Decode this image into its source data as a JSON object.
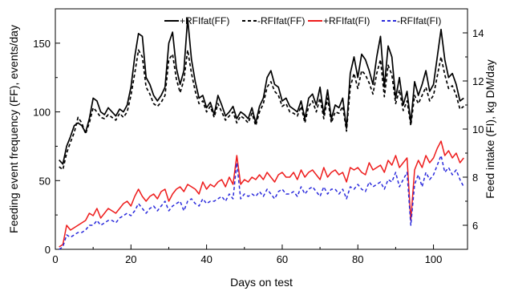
{
  "chart_data": {
    "type": "line",
    "title": "",
    "xlabel": "Days on test",
    "ylabel_left": "Feeding event frequency (FF), events/day",
    "ylabel_right": "Feed intake (FI), kg DM/day",
    "xlim": [
      0,
      109
    ],
    "ylim_left": [
      0,
      175
    ],
    "ylim_right": [
      5,
      15
    ],
    "x_ticks": [
      0,
      20,
      40,
      60,
      80,
      100
    ],
    "y_ticks_left": [
      0,
      50,
      100,
      150
    ],
    "y_ticks_right": [
      6,
      8,
      10,
      12,
      14
    ],
    "grid": false,
    "legend_position": "top",
    "x": [
      1,
      2,
      3,
      4,
      5,
      6,
      7,
      8,
      9,
      10,
      11,
      12,
      13,
      14,
      15,
      16,
      17,
      18,
      19,
      20,
      21,
      22,
      23,
      24,
      25,
      26,
      27,
      28,
      29,
      30,
      31,
      32,
      33,
      34,
      35,
      36,
      37,
      38,
      39,
      40,
      41,
      42,
      43,
      44,
      45,
      46,
      47,
      48,
      49,
      50,
      51,
      52,
      53,
      54,
      55,
      56,
      57,
      58,
      59,
      60,
      61,
      62,
      63,
      64,
      65,
      66,
      67,
      68,
      69,
      70,
      71,
      72,
      73,
      74,
      75,
      76,
      77,
      78,
      79,
      80,
      81,
      82,
      83,
      84,
      85,
      86,
      87,
      88,
      89,
      90,
      91,
      92,
      93,
      94,
      95,
      96,
      97,
      98,
      99,
      100,
      101,
      102,
      103,
      104,
      105,
      106,
      107,
      108
    ],
    "series": [
      {
        "name": "+RFIfat(FF)",
        "axis": "left",
        "color": "#000000",
        "dash": "solid",
        "values": [
          65,
          62,
          75,
          82,
          90,
          92,
          90,
          85,
          95,
          110,
          108,
          100,
          98,
          103,
          100,
          97,
          102,
          100,
          105,
          118,
          140,
          157,
          155,
          125,
          120,
          112,
          108,
          112,
          118,
          150,
          158,
          132,
          120,
          130,
          168,
          138,
          122,
          110,
          112,
          103,
          107,
          98,
          112,
          105,
          97,
          100,
          104,
          95,
          100,
          98,
          95,
          103,
          92,
          104,
          110,
          125,
          130,
          120,
          118,
          108,
          110,
          104,
          102,
          100,
          108,
          95,
          110,
          113,
          105,
          118,
          98,
          116,
          95,
          105,
          103,
          110,
          88,
          128,
          140,
          125,
          142,
          138,
          130,
          120,
          140,
          155,
          118,
          148,
          140,
          110,
          125,
          105,
          115,
          92,
          122,
          112,
          120,
          130,
          115,
          120,
          140,
          160,
          138,
          125,
          128,
          120,
          108,
          110
        ]
      },
      {
        "name": "-RFIfat(FF)",
        "axis": "left",
        "color": "#000000",
        "dash": "4,3",
        "values": [
          60,
          58,
          70,
          78,
          85,
          96,
          92,
          84,
          92,
          103,
          100,
          96,
          95,
          98,
          96,
          94,
          99,
          96,
          100,
          112,
          128,
          145,
          140,
          118,
          113,
          106,
          104,
          107,
          112,
          138,
          142,
          124,
          114,
          123,
          145,
          128,
          115,
          106,
          108,
          100,
          104,
          96,
          106,
          100,
          94,
          97,
          100,
          92,
          97,
          95,
          92,
          99,
          90,
          100,
          106,
          118,
          122,
          115,
          112,
          104,
          106,
          100,
          99,
          97,
          104,
          92,
          104,
          108,
          100,
          110,
          95,
          110,
          92,
          100,
          99,
          104,
          86,
          118,
          128,
          117,
          130,
          127,
          121,
          113,
          128,
          138,
          111,
          134,
          127,
          106,
          116,
          101,
          108,
          90,
          112,
          106,
          112,
          118,
          108,
          112,
          126,
          140,
          127,
          117,
          119,
          112,
          102,
          104
        ]
      },
      {
        "name": "+RFIfat(FI)",
        "axis": "right",
        "color": "#ee1c1c",
        "dash": "solid",
        "values": [
          5.1,
          5.2,
          6.0,
          5.8,
          5.9,
          6.0,
          6.1,
          6.2,
          6.5,
          6.4,
          6.7,
          6.3,
          6.5,
          6.7,
          6.6,
          6.5,
          6.7,
          6.9,
          7.0,
          6.8,
          7.2,
          7.5,
          7.2,
          7.0,
          7.2,
          7.3,
          7.1,
          7.4,
          7.5,
          7.0,
          7.3,
          7.5,
          7.6,
          7.4,
          7.7,
          7.6,
          7.5,
          7.3,
          7.8,
          7.5,
          7.7,
          7.6,
          7.8,
          7.9,
          7.6,
          8.0,
          7.7,
          8.9,
          7.7,
          7.9,
          7.8,
          8.0,
          7.9,
          8.1,
          7.9,
          8.2,
          8.0,
          7.8,
          8.1,
          8.2,
          8.0,
          8.0,
          8.2,
          7.9,
          8.3,
          8.0,
          8.2,
          8.3,
          8.1,
          7.9,
          8.4,
          8.0,
          8.2,
          8.3,
          8.1,
          8.2,
          7.8,
          8.4,
          8.3,
          8.4,
          8.2,
          8.1,
          8.6,
          8.3,
          8.4,
          8.5,
          8.2,
          8.7,
          8.5,
          8.9,
          8.4,
          8.6,
          8.8,
          6.2,
          8.3,
          8.7,
          8.4,
          8.9,
          8.6,
          8.8,
          9.2,
          9.5,
          8.9,
          9.1,
          8.8,
          9.0,
          8.6,
          8.8
        ]
      },
      {
        "name": "-RFIfat(FI)",
        "axis": "right",
        "color": "#2a2adc",
        "dash": "4,3",
        "values": [
          5.0,
          5.1,
          5.6,
          5.5,
          5.6,
          5.7,
          5.7,
          5.8,
          6.0,
          6.0,
          6.2,
          6.0,
          6.1,
          6.2,
          6.2,
          6.1,
          6.3,
          6.4,
          6.5,
          6.4,
          6.6,
          6.9,
          6.7,
          6.5,
          6.7,
          6.8,
          6.6,
          6.8,
          7.0,
          6.6,
          6.8,
          6.9,
          7.0,
          6.6,
          7.0,
          7.1,
          6.9,
          6.8,
          7.1,
          6.9,
          7.0,
          7.0,
          7.1,
          7.2,
          7.0,
          7.3,
          7.1,
          8.6,
          7.1,
          7.3,
          7.2,
          7.3,
          7.2,
          7.4,
          7.2,
          7.5,
          7.3,
          7.1,
          7.4,
          7.5,
          7.3,
          7.3,
          7.4,
          7.2,
          7.6,
          7.3,
          7.5,
          7.6,
          7.4,
          7.2,
          7.6,
          7.3,
          7.5,
          7.5,
          7.3,
          7.5,
          7.1,
          7.6,
          7.5,
          7.7,
          7.5,
          7.4,
          7.8,
          7.6,
          7.7,
          7.8,
          7.5,
          7.9,
          7.8,
          8.2,
          7.6,
          7.9,
          8.2,
          6.0,
          7.7,
          8.1,
          7.6,
          8.2,
          7.9,
          8.1,
          8.5,
          8.9,
          8.2,
          8.4,
          8.1,
          8.3,
          7.9,
          7.6
        ]
      }
    ]
  }
}
